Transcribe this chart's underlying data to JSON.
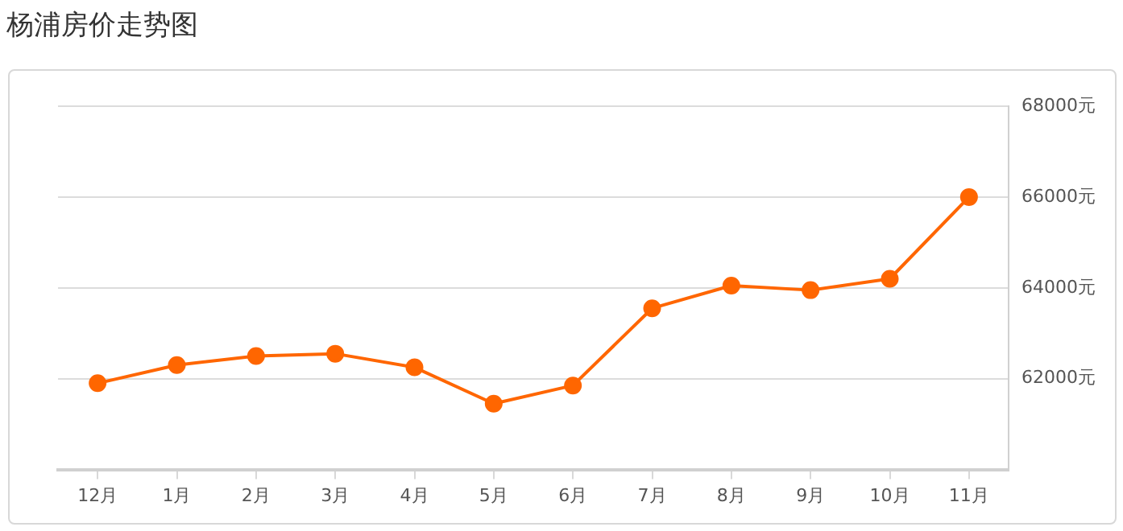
{
  "chart_data": {
    "type": "line",
    "title": "杨浦房价走势图",
    "categories": [
      "12月",
      "1月",
      "2月",
      "3月",
      "4月",
      "5月",
      "6月",
      "7月",
      "8月",
      "9月",
      "10月",
      "11月"
    ],
    "series": [
      {
        "color": "#ff6600",
        "values": [
          61900,
          62300,
          62500,
          62550,
          62250,
          61450,
          61850,
          63550,
          64050,
          63950,
          64200,
          66000
        ]
      }
    ],
    "ylim": [
      60000,
      68000
    ],
    "yticks": [
      {
        "value": 60000,
        "label": null
      },
      {
        "value": 62000,
        "label": "62000元"
      },
      {
        "value": 64000,
        "label": "64000元"
      },
      {
        "value": 66000,
        "label": "66000元"
      },
      {
        "value": 68000,
        "label": "68000元"
      }
    ],
    "grid": "y",
    "legend": false,
    "marker": "circle",
    "line_style": "solid"
  }
}
